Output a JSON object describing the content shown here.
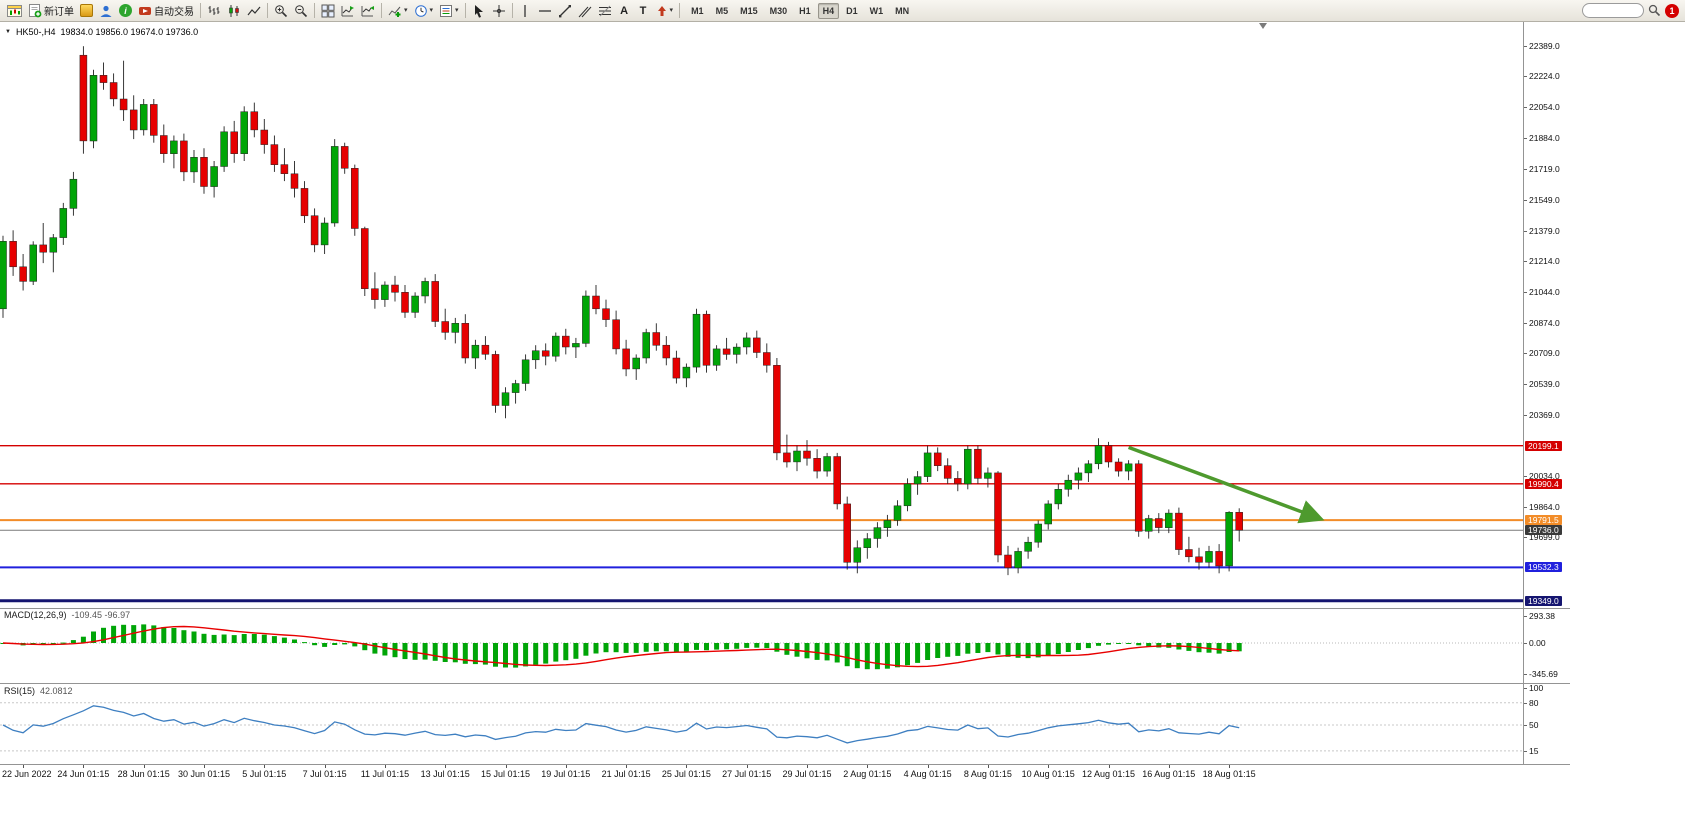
{
  "toolbar": {
    "new_order_label": "新订单",
    "auto_trading_label": "自动交易",
    "timeframes": [
      "M1",
      "M5",
      "M15",
      "M30",
      "H1",
      "H4",
      "D1",
      "W1",
      "MN"
    ],
    "active_timeframe": "H4",
    "notification_count": "1",
    "search_placeholder": ""
  },
  "glyphs": {
    "collapse": "▼",
    "dropdown": "▾",
    "text_tool": "A",
    "label_tool": "T",
    "info": "i"
  },
  "chart": {
    "symbol_period": "HK50-,H4",
    "ohlc_text": "19834.0 19856.0 19674.0 19736.0",
    "price_axis_labels": [
      "22389.0",
      "22224.0",
      "22054.0",
      "21884.0",
      "21719.0",
      "21549.0",
      "21379.0",
      "21214.0",
      "21044.0",
      "20874.0",
      "20709.0",
      "20539.0",
      "20369.0",
      "20034.0",
      "19864.0",
      "19699.0"
    ],
    "level_labels": [
      {
        "text": "20199.1",
        "price": 20199.1,
        "bg": "#D40000"
      },
      {
        "text": "19990.4",
        "price": 19990.4,
        "bg": "#D40000"
      },
      {
        "text": "19791.5",
        "price": 19791.5,
        "bg": "#F28C28"
      },
      {
        "text": "19736.0",
        "price": 19736.0,
        "bg": "#3a3a3a"
      },
      {
        "text": "19532.3",
        "price": 19532.3,
        "bg": "#2020DD"
      },
      {
        "text": "19349.0",
        "price": 19349.0,
        "bg": "#151570"
      }
    ]
  },
  "macd": {
    "name": "MACD(12,26,9)",
    "values": "-109.45 -96.97",
    "scale": [
      "293.38",
      "0.00",
      "-345.69"
    ]
  },
  "rsi": {
    "name": "RSI(15)",
    "value": "42.0812",
    "scale": [
      "100",
      "80",
      "50",
      "15"
    ],
    "levels": [
      80,
      50,
      15
    ]
  },
  "chart_data": {
    "type": "candlestick",
    "symbol": "HK50-",
    "period": "H4",
    "current_ohlc": {
      "open": 19834.0,
      "high": 19856.0,
      "low": 19674.0,
      "close": 19736.0
    },
    "y_axis_range": [
      19315,
      22500
    ],
    "up_color": "#00A507",
    "down_color": "#E60000",
    "x_labels": [
      "22 Jun 2022",
      "24 Jun 01:15",
      "28 Jun 01:15",
      "30 Jun 01:15",
      "5 Jul 01:15",
      "7 Jul 01:15",
      "11 Jul 01:15",
      "13 Jul 01:15",
      "15 Jul 01:15",
      "19 Jul 01:15",
      "21 Jul 01:15",
      "25 Jul 01:15",
      "27 Jul 01:15",
      "29 Jul 01:15",
      "2 Aug 01:15",
      "4 Aug 01:15",
      "8 Aug 01:15",
      "10 Aug 01:15",
      "12 Aug 01:15",
      "16 Aug 01:15",
      "18 Aug 01:15"
    ],
    "candles": [
      [
        20950,
        21350,
        20900,
        21320
      ],
      [
        21320,
        21380,
        21130,
        21180
      ],
      [
        21180,
        21250,
        21050,
        21100
      ],
      [
        21100,
        21320,
        21080,
        21300
      ],
      [
        21300,
        21420,
        21200,
        21260
      ],
      [
        21260,
        21360,
        21150,
        21340
      ],
      [
        21340,
        21530,
        21300,
        21500
      ],
      [
        21500,
        21700,
        21460,
        21660
      ],
      [
        22340,
        22389,
        21800,
        21870
      ],
      [
        21870,
        22260,
        21830,
        22230
      ],
      [
        22230,
        22300,
        22150,
        22190
      ],
      [
        22190,
        22240,
        22060,
        22100
      ],
      [
        22100,
        22310,
        21980,
        22040
      ],
      [
        22040,
        22120,
        21880,
        21930
      ],
      [
        21930,
        22100,
        21900,
        22070
      ],
      [
        22070,
        22100,
        21860,
        21900
      ],
      [
        21900,
        21960,
        21750,
        21800
      ],
      [
        21800,
        21900,
        21720,
        21870
      ],
      [
        21870,
        21910,
        21650,
        21700
      ],
      [
        21700,
        21820,
        21640,
        21780
      ],
      [
        21780,
        21830,
        21580,
        21620
      ],
      [
        21620,
        21760,
        21560,
        21730
      ],
      [
        21730,
        21950,
        21700,
        21920
      ],
      [
        21920,
        21980,
        21750,
        21800
      ],
      [
        21800,
        22060,
        21760,
        22030
      ],
      [
        22030,
        22080,
        21890,
        21930
      ],
      [
        21930,
        21990,
        21800,
        21850
      ],
      [
        21850,
        21900,
        21700,
        21740
      ],
      [
        21740,
        21830,
        21650,
        21690
      ],
      [
        21690,
        21760,
        21560,
        21610
      ],
      [
        21610,
        21650,
        21420,
        21460
      ],
      [
        21460,
        21500,
        21260,
        21300
      ],
      [
        21300,
        21450,
        21250,
        21420
      ],
      [
        21420,
        21880,
        21400,
        21840
      ],
      [
        21840,
        21860,
        21690,
        21720
      ],
      [
        21720,
        21740,
        21350,
        21390
      ],
      [
        21390,
        21400,
        21020,
        21060
      ],
      [
        21060,
        21150,
        20950,
        21000
      ],
      [
        21000,
        21100,
        20960,
        21080
      ],
      [
        21080,
        21130,
        20990,
        21040
      ],
      [
        21040,
        21080,
        20900,
        20930
      ],
      [
        20930,
        21040,
        20900,
        21020
      ],
      [
        21020,
        21120,
        20980,
        21100
      ],
      [
        21100,
        21140,
        20850,
        20880
      ],
      [
        20880,
        20950,
        20780,
        20820
      ],
      [
        20820,
        20900,
        20760,
        20870
      ],
      [
        20870,
        20920,
        20650,
        20680
      ],
      [
        20680,
        20780,
        20620,
        20750
      ],
      [
        20750,
        20800,
        20670,
        20700
      ],
      [
        20700,
        20720,
        20380,
        20420
      ],
      [
        20420,
        20520,
        20350,
        20490
      ],
      [
        20490,
        20560,
        20430,
        20540
      ],
      [
        20540,
        20700,
        20500,
        20670
      ],
      [
        20670,
        20750,
        20620,
        20720
      ],
      [
        20720,
        20760,
        20640,
        20690
      ],
      [
        20690,
        20820,
        20660,
        20800
      ],
      [
        20800,
        20840,
        20700,
        20740
      ],
      [
        20740,
        20790,
        20680,
        20760
      ],
      [
        20760,
        21050,
        20740,
        21020
      ],
      [
        21020,
        21080,
        20920,
        20950
      ],
      [
        20950,
        21000,
        20850,
        20890
      ],
      [
        20890,
        20940,
        20700,
        20730
      ],
      [
        20730,
        20780,
        20580,
        20620
      ],
      [
        20620,
        20700,
        20560,
        20680
      ],
      [
        20680,
        20840,
        20650,
        20820
      ],
      [
        20820,
        20870,
        20720,
        20750
      ],
      [
        20750,
        20800,
        20640,
        20680
      ],
      [
        20680,
        20720,
        20540,
        20570
      ],
      [
        20570,
        20650,
        20520,
        20630
      ],
      [
        20630,
        20950,
        20600,
        20920
      ],
      [
        20920,
        20940,
        20600,
        20640
      ],
      [
        20640,
        20750,
        20610,
        20730
      ],
      [
        20730,
        20790,
        20670,
        20700
      ],
      [
        20700,
        20760,
        20650,
        20740
      ],
      [
        20740,
        20820,
        20700,
        20790
      ],
      [
        20790,
        20830,
        20680,
        20710
      ],
      [
        20710,
        20760,
        20600,
        20640
      ],
      [
        20640,
        20680,
        20120,
        20160
      ],
      [
        20160,
        20260,
        20080,
        20110
      ],
      [
        20110,
        20200,
        20060,
        20170
      ],
      [
        20170,
        20230,
        20090,
        20130
      ],
      [
        20130,
        20180,
        20020,
        20060
      ],
      [
        20060,
        20160,
        20030,
        20140
      ],
      [
        20140,
        20160,
        19850,
        19880
      ],
      [
        19880,
        19920,
        19520,
        19560
      ],
      [
        19560,
        19680,
        19500,
        19640
      ],
      [
        19640,
        19720,
        19580,
        19690
      ],
      [
        19690,
        19780,
        19640,
        19750
      ],
      [
        19750,
        19820,
        19700,
        19790
      ],
      [
        19790,
        19900,
        19760,
        19870
      ],
      [
        19870,
        20020,
        19840,
        19990
      ],
      [
        19990,
        20060,
        19930,
        20030
      ],
      [
        20030,
        20199,
        20000,
        20160
      ],
      [
        20160,
        20190,
        20060,
        20090
      ],
      [
        20090,
        20130,
        19990,
        20020
      ],
      [
        20020,
        20060,
        19950,
        19990
      ],
      [
        19990,
        20199,
        19960,
        20180
      ],
      [
        20180,
        20199,
        19990,
        20020
      ],
      [
        20020,
        20080,
        19970,
        20050
      ],
      [
        20050,
        20060,
        19560,
        19600
      ],
      [
        19600,
        19650,
        19490,
        19530
      ],
      [
        19530,
        19640,
        19500,
        19620
      ],
      [
        19620,
        19700,
        19580,
        19670
      ],
      [
        19670,
        19790,
        19640,
        19770
      ],
      [
        19770,
        19900,
        19740,
        19880
      ],
      [
        19880,
        19990,
        19850,
        19960
      ],
      [
        19960,
        20040,
        19920,
        20010
      ],
      [
        20010,
        20080,
        19960,
        20050
      ],
      [
        20050,
        20120,
        20000,
        20100
      ],
      [
        20100,
        20240,
        20070,
        20200
      ],
      [
        20200,
        20220,
        20080,
        20110
      ],
      [
        20110,
        20130,
        20030,
        20060
      ],
      [
        20060,
        20120,
        20010,
        20100
      ],
      [
        20100,
        20120,
        19700,
        19730
      ],
      [
        19730,
        19820,
        19690,
        19800
      ],
      [
        19800,
        19830,
        19720,
        19750
      ],
      [
        19750,
        19850,
        19720,
        19830
      ],
      [
        19830,
        19860,
        19600,
        19630
      ],
      [
        19630,
        19700,
        19560,
        19590
      ],
      [
        19590,
        19640,
        19520,
        19560
      ],
      [
        19560,
        19650,
        19530,
        19620
      ],
      [
        19620,
        19660,
        19500,
        19540
      ],
      [
        19540,
        19840,
        19510,
        19834
      ],
      [
        19834,
        19856,
        19674,
        19736
      ]
    ],
    "hlines": [
      {
        "price": 20199.1,
        "color": "#D40000",
        "width": 1.3
      },
      {
        "price": 19990.4,
        "color": "#D40000",
        "width": 1.3
      },
      {
        "price": 19791.5,
        "color": "#F28C28",
        "width": 2
      },
      {
        "price": 19736.0,
        "color": "#7a7a7a",
        "width": 1
      },
      {
        "price": 19532.3,
        "color": "#2020DD",
        "width": 2
      },
      {
        "price": 19349.0,
        "color": "#151570",
        "width": 3
      }
    ],
    "arrow": {
      "from_index": 112,
      "from_price": 20190,
      "to_index": 131,
      "to_price": 19800,
      "color": "#4E9A2E",
      "width": 3.5
    },
    "indicators": [
      {
        "name": "MACD",
        "params": [
          12,
          26,
          9
        ],
        "display_values": [
          -109.45,
          -96.97
        ],
        "scale_range": [
          -345.69,
          293.38
        ]
      },
      {
        "name": "RSI",
        "params": [
          15
        ],
        "display_value": 42.0812,
        "levels": [
          80,
          50,
          15
        ],
        "scale_range": [
          0,
          100
        ]
      }
    ]
  }
}
